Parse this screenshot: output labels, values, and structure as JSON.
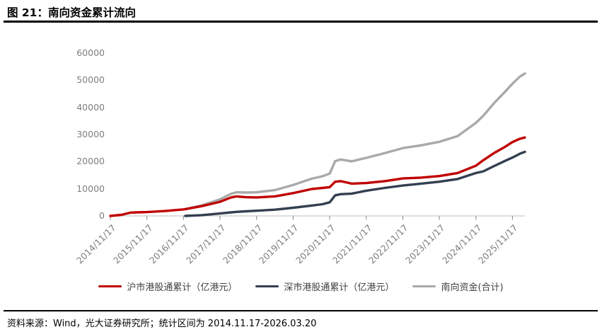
{
  "header": {
    "title": "图 21：南向资金累计流向"
  },
  "footer": {
    "text": "资料来源：Wind，光大证券研究所；统计区间为 2014.11.17-2026.03.20"
  },
  "colors": {
    "red": "#C00000",
    "navy": "#333F50",
    "gray": "#A9A9A9",
    "axis_line": "#C9C9C9",
    "tick_mark": "#8F8F8F",
    "tick_label": "#7F7F7F"
  },
  "chart_data": {
    "type": "line",
    "title": "南向资金累计流向",
    "xlabel": "",
    "ylabel": "",
    "grid": false,
    "legend_position": "bottom",
    "ylim": [
      0,
      60000
    ],
    "y_ticks": [
      0,
      10000,
      20000,
      30000,
      40000,
      50000,
      60000
    ],
    "x_tick_labels": [
      "2014/11/17",
      "2015/11/17",
      "2016/11/17",
      "2017/11/17",
      "2018/11/17",
      "2019/11/17",
      "2020/11/17",
      "2021/11/17",
      "2022/11/17",
      "2023/11/17",
      "2024/11/17",
      "2025/11/17"
    ],
    "x_axis_note": "x values are years elapsed since 2014/11/17; axis ends 2026/03/20",
    "xlim_years": [
      0,
      11.34
    ],
    "x": [
      0,
      0.3,
      0.55,
      0.7,
      1.0,
      1.5,
      2.0,
      2.05,
      2.5,
      3.0,
      3.3,
      3.45,
      3.7,
      4.0,
      4.5,
      5.0,
      5.5,
      5.8,
      6.0,
      6.15,
      6.3,
      6.6,
      7.0,
      7.5,
      8.0,
      8.5,
      9.0,
      9.5,
      10.0,
      10.2,
      10.5,
      10.8,
      11.0,
      11.2,
      11.34
    ],
    "series": [
      {
        "name": "沪市港股通累计（亿港元）",
        "color_key": "red",
        "values": [
          0,
          400,
          1200,
          1300,
          1400,
          1800,
          2400,
          2500,
          3600,
          5200,
          6800,
          7200,
          6900,
          6800,
          7200,
          8400,
          9900,
          10300,
          10600,
          12600,
          12800,
          11900,
          12100,
          12800,
          13800,
          14100,
          14700,
          15800,
          18500,
          20500,
          23200,
          25500,
          27200,
          28400,
          28900
        ]
      },
      {
        "name": "深市港股通累计（亿港元）",
        "color_key": "navy",
        "values": [
          null,
          null,
          null,
          null,
          null,
          null,
          null,
          0,
          300,
          900,
          1300,
          1500,
          1700,
          1900,
          2300,
          3000,
          3800,
          4300,
          5000,
          7600,
          8000,
          8200,
          9300,
          10300,
          11200,
          11900,
          12600,
          13600,
          15800,
          16400,
          18400,
          20300,
          21500,
          22900,
          23600
        ]
      },
      {
        "name": "南向资金(合计)",
        "color_key": "gray",
        "values": [
          null,
          null,
          null,
          null,
          null,
          null,
          null,
          2500,
          3900,
          6100,
          8100,
          8700,
          8600,
          8700,
          9500,
          11400,
          13700,
          14600,
          15600,
          20200,
          20800,
          20100,
          21400,
          23100,
          25000,
          26000,
          27300,
          29400,
          34300,
          36900,
          41600,
          45800,
          48700,
          51300,
          52500
        ]
      }
    ]
  }
}
